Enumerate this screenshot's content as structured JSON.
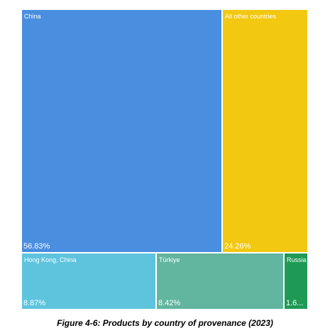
{
  "chart_data": {
    "type": "treemap",
    "title": "",
    "items": [
      {
        "name": "China",
        "label": "56.83%",
        "value": 56.83,
        "color": "#4a8ee0"
      },
      {
        "name": "All other countries",
        "label": "24.26%",
        "value": 24.26,
        "color": "#f2c811"
      },
      {
        "name": "Hong Kong, China",
        "label": "8.87%",
        "value": 8.87,
        "color": "#5ec4de"
      },
      {
        "name": "Türkiye",
        "label": "8.42%",
        "value": 8.42,
        "color": "#62b59e"
      },
      {
        "name": "Russia",
        "label": "1.6...",
        "value": 1.62,
        "color": "#1e9a55"
      }
    ]
  },
  "caption": "Figure 4-6: Products by country of provenance (2023)"
}
